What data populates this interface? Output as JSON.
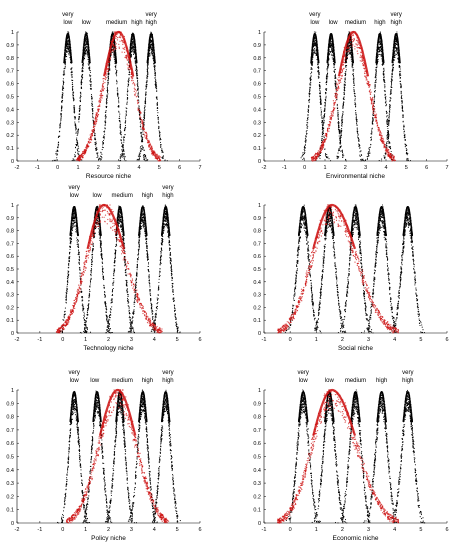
{
  "figure": {
    "background": "#ffffff",
    "point_color": "#000000",
    "membership_color": "#cc1111"
  },
  "chart_data": [
    {
      "type": "scatter",
      "xlabel": "Resource niche",
      "xlim": [
        -2,
        7
      ],
      "ylim": [
        0,
        1
      ],
      "xticks": [
        -2,
        -1,
        0,
        1,
        2,
        3,
        4,
        5,
        6,
        7
      ],
      "yticks": [
        0,
        0.1,
        0.2,
        0.3,
        0.4,
        0.5,
        0.6,
        0.7,
        0.8,
        0.9,
        1
      ],
      "grade_labels": [
        {
          "text": "very\nlow",
          "x": 0.5
        },
        {
          "text": "low",
          "x": 1.4
        },
        {
          "text": "medium",
          "x": 2.9
        },
        {
          "text": "high",
          "x": 3.9
        },
        {
          "text": "very\nhigh",
          "x": 4.6
        }
      ],
      "clouds": [
        {
          "center": 0.5,
          "width": 0.6
        },
        {
          "center": 1.4,
          "width": 0.6
        },
        {
          "center": 2.7,
          "width": 0.6
        },
        {
          "center": 3.7,
          "width": 0.6
        },
        {
          "center": 4.6,
          "width": 0.6
        }
      ],
      "membership_curve": {
        "center": 3.0,
        "left_spread": 1.3,
        "right_spread": 1.3
      }
    },
    {
      "type": "scatter",
      "xlabel": "Environmental niche",
      "xlim": [
        -2,
        7
      ],
      "ylim": [
        0,
        1
      ],
      "xticks": [
        -2,
        -1,
        0,
        1,
        2,
        3,
        4,
        5,
        6,
        7
      ],
      "yticks": [
        0,
        0.1,
        0.2,
        0.3,
        0.4,
        0.5,
        0.6,
        0.7,
        0.8,
        0.9,
        1
      ],
      "grade_labels": [
        {
          "text": "very\nlow",
          "x": 0.5
        },
        {
          "text": "low",
          "x": 1.4
        },
        {
          "text": "medium",
          "x": 2.5
        },
        {
          "text": "high",
          "x": 3.7
        },
        {
          "text": "very\nhigh",
          "x": 4.5
        }
      ],
      "clouds": [
        {
          "center": 0.5,
          "width": 0.6
        },
        {
          "center": 1.3,
          "width": 0.6
        },
        {
          "center": 2.2,
          "width": 0.6
        },
        {
          "center": 3.7,
          "width": 0.6
        },
        {
          "center": 4.5,
          "width": 0.6
        }
      ],
      "membership_curve": {
        "center": 2.4,
        "left_spread": 1.3,
        "right_spread": 1.3
      }
    },
    {
      "type": "scatter",
      "xlabel": "Technology niche",
      "xlim": [
        -2,
        6
      ],
      "ylim": [
        0,
        1
      ],
      "xticks": [
        -2,
        -1,
        0,
        1,
        2,
        3,
        4,
        5,
        6
      ],
      "yticks": [
        0,
        0.1,
        0.2,
        0.3,
        0.4,
        0.5,
        0.6,
        0.7,
        0.8,
        0.9,
        1
      ],
      "grade_labels": [
        {
          "text": "very\nlow",
          "x": 0.5
        },
        {
          "text": "low",
          "x": 1.5
        },
        {
          "text": "medium",
          "x": 2.6
        },
        {
          "text": "high",
          "x": 3.7
        },
        {
          "text": "very\nhigh",
          "x": 4.6
        }
      ],
      "clouds": [
        {
          "center": 0.5,
          "width": 0.55
        },
        {
          "center": 1.5,
          "width": 0.55
        },
        {
          "center": 2.5,
          "width": 0.55
        },
        {
          "center": 3.5,
          "width": 0.55
        },
        {
          "center": 4.5,
          "width": 0.55
        }
      ],
      "membership_curve": {
        "center": 1.8,
        "left_spread": 1.3,
        "right_spread": 1.6
      }
    },
    {
      "type": "scatter",
      "xlabel": "Social niche",
      "xlim": [
        -1,
        6
      ],
      "ylim": [
        0,
        1
      ],
      "xticks": [
        -1,
        0,
        1,
        2,
        3,
        4,
        5,
        6
      ],
      "yticks": [
        0,
        0.1,
        0.2,
        0.3,
        0.4,
        0.5,
        0.6,
        0.7,
        0.8,
        0.9,
        1
      ],
      "grade_labels": [],
      "clouds": [
        {
          "center": 0.5,
          "width": 0.55
        },
        {
          "center": 1.5,
          "width": 0.55
        },
        {
          "center": 2.5,
          "width": 0.55
        },
        {
          "center": 3.5,
          "width": 0.55
        },
        {
          "center": 4.5,
          "width": 0.55
        }
      ],
      "membership_curve": {
        "center": 1.6,
        "left_spread": 1.3,
        "right_spread": 1.6
      }
    },
    {
      "type": "scatter",
      "xlabel": "Policy niche",
      "xlim": [
        -2,
        6
      ],
      "ylim": [
        0,
        1
      ],
      "xticks": [
        -2,
        -1,
        0,
        1,
        2,
        3,
        4,
        5,
        6
      ],
      "yticks": [
        0,
        0.1,
        0.2,
        0.3,
        0.4,
        0.5,
        0.6,
        0.7,
        0.8,
        0.9,
        1
      ],
      "grade_labels": [
        {
          "text": "very\nlow",
          "x": 0.5
        },
        {
          "text": "low",
          "x": 1.4
        },
        {
          "text": "medium",
          "x": 2.6
        },
        {
          "text": "high",
          "x": 3.7
        },
        {
          "text": "very\nhigh",
          "x": 4.6
        }
      ],
      "clouds": [
        {
          "center": 0.5,
          "width": 0.55
        },
        {
          "center": 1.5,
          "width": 0.55
        },
        {
          "center": 2.5,
          "width": 0.55
        },
        {
          "center": 3.5,
          "width": 0.55
        },
        {
          "center": 4.5,
          "width": 0.55
        }
      ],
      "membership_curve": {
        "center": 2.4,
        "left_spread": 1.4,
        "right_spread": 1.4
      }
    },
    {
      "type": "scatter",
      "xlabel": "Economic niche",
      "xlim": [
        -1,
        6
      ],
      "ylim": [
        0,
        1
      ],
      "xticks": [
        -1,
        0,
        1,
        2,
        3,
        4,
        5,
        6
      ],
      "yticks": [
        0,
        0.1,
        0.2,
        0.3,
        0.4,
        0.5,
        0.6,
        0.7,
        0.8,
        0.9,
        1
      ],
      "grade_labels": [
        {
          "text": "very\nlow",
          "x": 0.5
        },
        {
          "text": "low",
          "x": 1.5
        },
        {
          "text": "medium",
          "x": 2.5
        },
        {
          "text": "high",
          "x": 3.5
        },
        {
          "text": "very\nhigh",
          "x": 4.5
        }
      ],
      "clouds": [
        {
          "center": 0.5,
          "width": 0.55
        },
        {
          "center": 1.5,
          "width": 0.55
        },
        {
          "center": 2.5,
          "width": 0.55
        },
        {
          "center": 3.5,
          "width": 0.55
        },
        {
          "center": 4.5,
          "width": 0.55
        }
      ],
      "membership_curve": {
        "center": 1.6,
        "left_spread": 1.3,
        "right_spread": 1.6
      }
    }
  ]
}
